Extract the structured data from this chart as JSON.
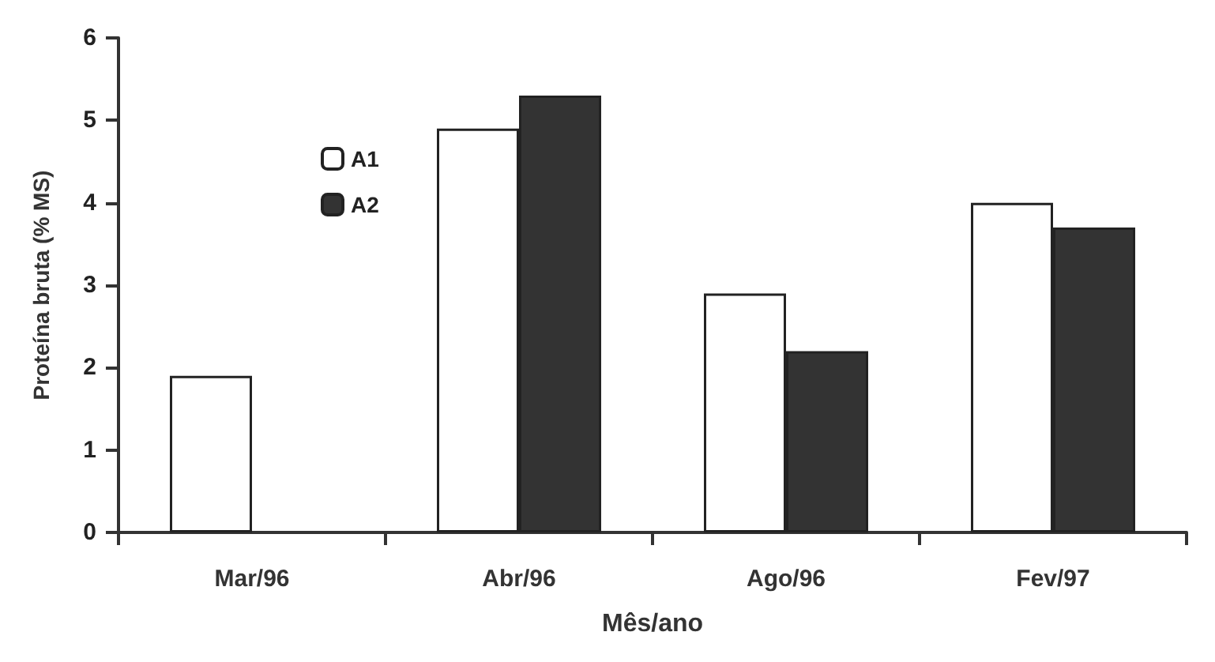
{
  "chart_data": {
    "type": "bar",
    "xlabel": "Mês/ano",
    "ylabel": "Proteína bruta (% MS)",
    "categories": [
      "Mar/96",
      "Abr/96",
      "Ago/96",
      "Fev/97"
    ],
    "series": [
      {
        "name": "A1",
        "color": "#ffffff",
        "values": [
          1.9,
          4.9,
          2.9,
          4.0
        ]
      },
      {
        "name": "A2",
        "color": "#333333",
        "values": [
          null,
          5.3,
          2.2,
          3.7
        ]
      }
    ],
    "ylim": [
      0,
      6
    ],
    "yticks": [
      0,
      1,
      2,
      3,
      4,
      5,
      6
    ],
    "grid": false,
    "legend": "top left"
  }
}
